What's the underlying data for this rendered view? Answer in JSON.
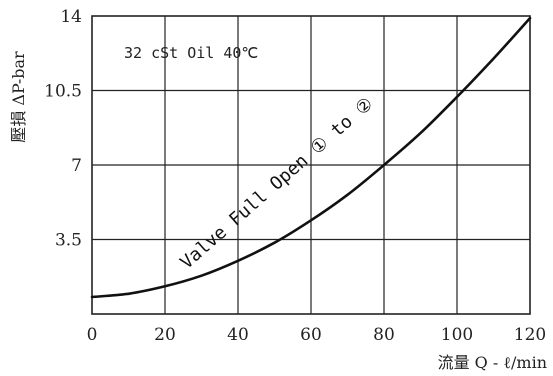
{
  "chart_data": {
    "type": "line",
    "title": "",
    "annotation": "32 cSt Oil 40℃",
    "xlabel": "流量 Q - ℓ/min",
    "ylabel": "壓損 ΔP-bar",
    "xlim": [
      0,
      120
    ],
    "ylim": [
      0,
      14
    ],
    "x_ticks": [
      0,
      20,
      40,
      60,
      80,
      100,
      120
    ],
    "y_ticks": [
      3.5,
      7,
      10.5,
      14
    ],
    "x_tick_labels": [
      "0",
      "20",
      "40",
      "60",
      "80",
      "100",
      "120"
    ],
    "y_tick_labels": [
      "3.5",
      "7",
      "10.5",
      "14"
    ],
    "grid": true,
    "series": [
      {
        "name": "Valve Full Open ① to ②",
        "x": [
          0,
          10,
          20,
          30,
          40,
          50,
          60,
          70,
          80,
          90,
          100,
          110,
          120
        ],
        "y": [
          0.8,
          0.95,
          1.3,
          1.8,
          2.5,
          3.35,
          4.4,
          5.6,
          7.0,
          8.5,
          10.2,
          12.0,
          13.9
        ]
      }
    ]
  }
}
